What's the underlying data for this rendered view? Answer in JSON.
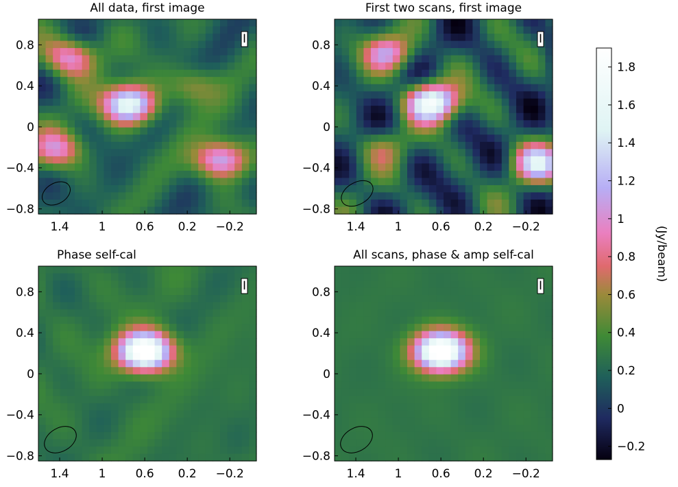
{
  "chart_data": [
    {
      "type": "heatmap",
      "title": "All data, first image",
      "stokes_label": "I",
      "x_ticks": [
        "1.4",
        "1",
        "0.6",
        "0.2",
        "−0.2"
      ],
      "y_ticks": [
        "0.8",
        "0.4",
        "0",
        "−0.4",
        "−0.8"
      ],
      "xlim": [
        1.6,
        -0.45
      ],
      "ylim": [
        -0.85,
        1.05
      ],
      "features": [
        {
          "x": 0.75,
          "y": 0.22,
          "peak": 1.45
        },
        {
          "x": 1.3,
          "y": 0.68,
          "peak": 0.85
        },
        {
          "x": -0.12,
          "y": -0.32,
          "peak": 1.05
        },
        {
          "x": 1.42,
          "y": -0.22,
          "peak": 0.72
        },
        {
          "x": 0.15,
          "y": 0.4,
          "peak": 0.45
        }
      ]
    },
    {
      "type": "heatmap",
      "title": "First two scans, first image",
      "stokes_label": "I",
      "x_ticks": [
        "1.4",
        "1",
        "0.6",
        "0.2",
        "−0.2"
      ],
      "y_ticks": [
        "0.8",
        "0.4",
        "0",
        "−0.4",
        "−0.8"
      ],
      "xlim": [
        1.6,
        -0.45
      ],
      "ylim": [
        -0.85,
        1.05
      ],
      "features": [
        {
          "x": 0.68,
          "y": 0.24,
          "peak": 1.6
        },
        {
          "x": 1.1,
          "y": 0.72,
          "peak": 0.9
        },
        {
          "x": -0.32,
          "y": -0.36,
          "peak": 1.1
        },
        {
          "x": 1.15,
          "y": -0.2,
          "peak": 0.4
        }
      ]
    },
    {
      "type": "heatmap",
      "title": "Phase self-cal",
      "stokes_label": "I",
      "x_ticks": [
        "1.4",
        "1",
        "0.6",
        "0.2",
        "−0.2"
      ],
      "y_ticks": [
        "0.8",
        "0.4",
        "0",
        "−0.4",
        "−0.8"
      ],
      "xlim": [
        1.6,
        -0.45
      ],
      "ylim": [
        -0.85,
        1.05
      ],
      "features": [
        {
          "x": 0.6,
          "y": 0.22,
          "peak": 1.9
        }
      ]
    },
    {
      "type": "heatmap",
      "title": "All scans, phase & amp self-cal",
      "stokes_label": "I",
      "x_ticks": [
        "1.4",
        "1",
        "0.6",
        "0.2",
        "−0.2"
      ],
      "y_ticks": [
        "0.8",
        "0.4",
        "0",
        "−0.4",
        "−0.8"
      ],
      "xlim": [
        1.6,
        -0.45
      ],
      "ylim": [
        -0.85,
        1.05
      ],
      "features": [
        {
          "x": 0.6,
          "y": 0.22,
          "peak": 1.9
        }
      ]
    }
  ],
  "colorbar": {
    "label": "(Jy/beam)",
    "range": [
      -0.27,
      1.9
    ],
    "ticks": [
      "1.8",
      "1.6",
      "1.4",
      "1.2",
      "1",
      "0.8",
      "0.6",
      "0.4",
      "0.2",
      "0",
      "−0.2"
    ],
    "tick_values": [
      1.8,
      1.6,
      1.4,
      1.2,
      1.0,
      0.8,
      0.6,
      0.4,
      0.2,
      0.0,
      -0.2
    ],
    "colormap": [
      "#050010",
      "#1f2a60",
      "#1f5f5a",
      "#3f8a36",
      "#9a8a3a",
      "#e06a6e",
      "#ea7fbf",
      "#b7aef5",
      "#dff4f4",
      "#ffffff"
    ]
  }
}
